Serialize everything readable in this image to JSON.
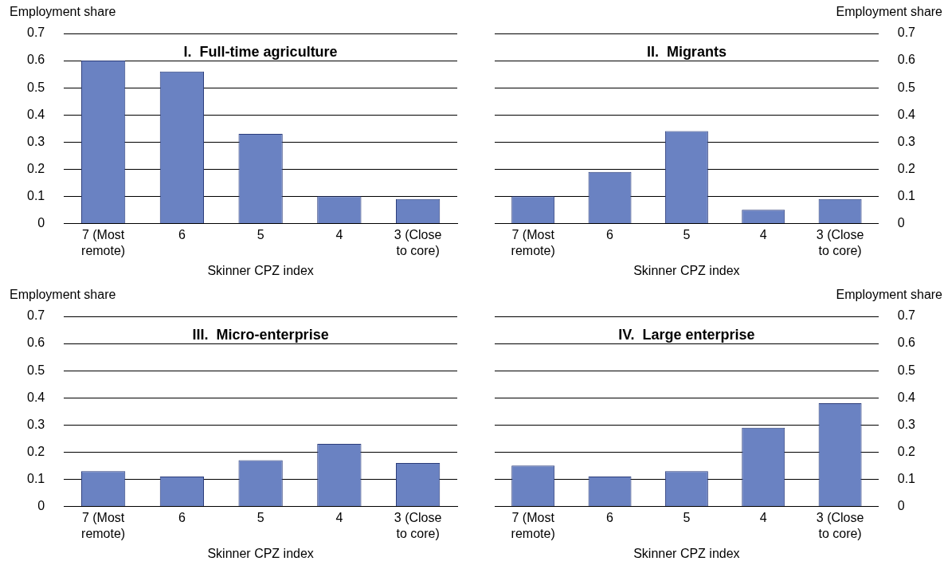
{
  "chart_data": [
    {
      "type": "bar",
      "title": "I.  Full-time agriculture",
      "xlabel": "Skinner CPZ index",
      "ylabel": "Employment share",
      "categories": [
        "7 (Most remote)",
        "6",
        "5",
        "4",
        "3 (Close to core)"
      ],
      "series": [
        {
          "color": "#6a82c2",
          "values": [
            0.6,
            0.56,
            0.33,
            0.1,
            0.09
          ]
        }
      ],
      "ylim": [
        0,
        0.7
      ],
      "yticks": [
        {
          "value": 0,
          "label": "0"
        },
        0.1,
        0.2,
        0.3,
        0.4,
        0.5,
        0.6,
        0.7
      ],
      "grid": "y"
    },
    {
      "type": "bar",
      "title": "II.  Migrants",
      "xlabel": "Skinner CPZ index",
      "y2label": "Employment share",
      "categories": [
        "7 (Most remote)",
        "6",
        "5",
        "4",
        "3 (Close to core)"
      ],
      "series": [
        {
          "color": "#6a82c2",
          "axis": "y2",
          "values": [
            0.1,
            0.19,
            0.34,
            0.05,
            0.09
          ]
        }
      ],
      "y2lim": [
        0,
        0.7
      ],
      "y2ticks": [
        {
          "value": 0,
          "label": "0"
        },
        0.1,
        0.2,
        0.3,
        0.4,
        0.5,
        0.6,
        0.7
      ],
      "grid": "y"
    },
    {
      "type": "bar",
      "title": "III.  Micro-enterprise",
      "xlabel": "Skinner CPZ index",
      "ylabel": "Employment share",
      "categories": [
        "7 (Most remote)",
        "6",
        "5",
        "4",
        "3 (Close to core)"
      ],
      "series": [
        {
          "color": "#6a82c2",
          "values": [
            0.13,
            0.11,
            0.17,
            0.23,
            0.16
          ]
        }
      ],
      "ylim": [
        0,
        0.7
      ],
      "yticks": [
        {
          "value": 0,
          "label": "0"
        },
        0.1,
        0.2,
        0.3,
        0.4,
        0.5,
        0.6,
        0.7
      ],
      "grid": "y"
    },
    {
      "type": "bar",
      "title": "IV.  Large enterprise",
      "xlabel": "Skinner CPZ index",
      "y2label": "Employment share",
      "categories": [
        "7 (Most remote)",
        "6",
        "5",
        "4",
        "3 (Close to core)"
      ],
      "series": [
        {
          "color": "#6a82c2",
          "axis": "y2",
          "values": [
            0.15,
            0.11,
            0.13,
            0.29,
            0.38
          ]
        }
      ],
      "y2lim": [
        0,
        0.7
      ],
      "y2ticks": [
        {
          "value": 0,
          "label": "0"
        },
        0.1,
        0.2,
        0.3,
        0.4,
        0.5,
        0.6,
        0.7
      ],
      "grid": "y"
    }
  ]
}
